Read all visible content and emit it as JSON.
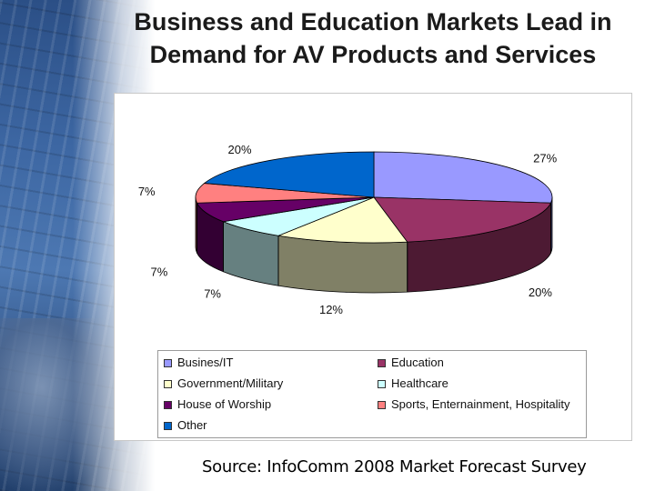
{
  "slide": {
    "title_line1": "Business and Education Markets Lead in",
    "title_line2": "Demand for AV Products and Services",
    "source": "Source: InfoComm 2008 Market Forecast Survey"
  },
  "chart_data": {
    "type": "pie",
    "three_d": true,
    "legend_placement": "bottom",
    "slices": [
      {
        "label": "Busines/IT",
        "value": 27,
        "display": "27%",
        "color": "#9999ff"
      },
      {
        "label": "Education",
        "value": 20,
        "display": "20%",
        "color": "#993366"
      },
      {
        "label": "Government/Military",
        "value": 12,
        "display": "12%",
        "color": "#ffffcc"
      },
      {
        "label": "Healthcare",
        "value": 7,
        "display": "7%",
        "color": "#ccffff"
      },
      {
        "label": "House of Worship",
        "value": 7,
        "display": "7%",
        "color": "#660066"
      },
      {
        "label": "Sports, Enternainment, Hospitality",
        "value": 7,
        "display": "7%",
        "color": "#ff8080"
      },
      {
        "label": "Other",
        "value": 20,
        "display": "20%",
        "color": "#0066cc"
      }
    ]
  }
}
